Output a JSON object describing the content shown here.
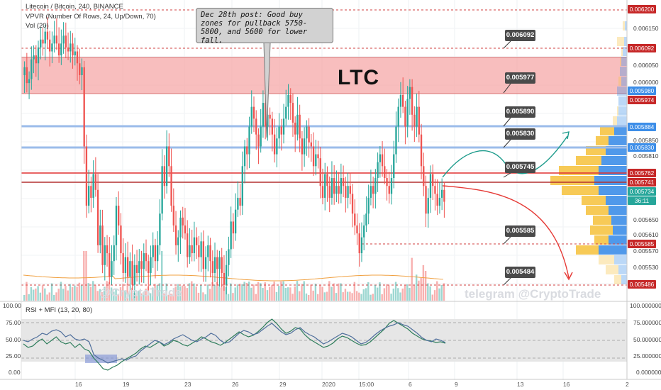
{
  "header": {
    "pair": "Litecoin / Bitcoin, 240, BINANCE",
    "vpvr": "VPVR (Number Of Rows, 24, Up/Down, 70)",
    "vol": "Vol (20)",
    "rsi": "RSI + MFI (13, 20, 80)"
  },
  "annotation": {
    "callout": "Dec 28th post: Good buy zones for pullback 5750-5800, and 5600 for lower fall.",
    "symbol": "LTC"
  },
  "watermarks": {
    "left": "@CryptoTrade",
    "right": "telegram @CryptoTrade"
  },
  "colors": {
    "up": "#26a69a",
    "down": "#ef5350",
    "zone": "#f5a3a3",
    "blue_level": "#9bbcea",
    "red_level": "#e03030",
    "volume_profile_up": "#f6c445",
    "volume_profile_down": "#3d8ee8",
    "path_up": "#1a9a8a",
    "path_down": "#e53935"
  },
  "chart_data": [
    {
      "type": "candlestick",
      "title": "Litecoin / Bitcoin, 240, BINANCE",
      "x_tick_labels": [
        "16",
        "19",
        "23",
        "26",
        "29",
        "2020",
        "15:00",
        "6",
        "9",
        "13",
        "16",
        "2"
      ],
      "y_tick_labels": [
        "0.006150",
        "0.006050",
        "0.006000",
        "0.005850",
        "0.005810",
        "0.005650",
        "0.005610",
        "0.005570",
        "0.005530"
      ],
      "ylim": [
        0.00546,
        0.00622
      ],
      "closes": [
        0.00605,
        0.00601,
        0.00602,
        0.00607,
        0.00608,
        0.00606,
        0.0061,
        0.00612,
        0.00611,
        0.00614,
        0.00612,
        0.00609,
        0.00611,
        0.00613,
        0.00611,
        0.00608,
        0.00611,
        0.00613,
        0.0061,
        0.00609,
        0.00611,
        0.00608,
        0.00609,
        0.00606,
        0.00603,
        0.00605,
        0.00585,
        0.0057,
        0.00575,
        0.00572,
        0.00578,
        0.00574,
        0.0056,
        0.00565,
        0.00555,
        0.0056,
        0.00558,
        0.00552,
        0.00556,
        0.0056,
        0.0057,
        0.00565,
        0.00558,
        0.00553,
        0.00557,
        0.00552,
        0.00556,
        0.0055,
        0.00555,
        0.00553,
        0.00556,
        0.00554,
        0.00558,
        0.00556,
        0.00553,
        0.00557,
        0.0056,
        0.00556,
        0.0056,
        0.00568,
        0.0058,
        0.00575,
        0.00585,
        0.0058,
        0.0057,
        0.00565,
        0.0056,
        0.00562,
        0.00567,
        0.00565,
        0.00563,
        0.00557,
        0.0056,
        0.00558,
        0.00562,
        0.0056,
        0.00557,
        0.00561,
        0.00554,
        0.00557,
        0.0056,
        0.00556,
        0.00553,
        0.00557,
        0.00554,
        0.00557,
        0.00553,
        0.0055,
        0.00555,
        0.00559,
        0.00566,
        0.00563,
        0.00569,
        0.00572,
        0.0057,
        0.0058,
        0.00585,
        0.00583,
        0.0059,
        0.00595,
        0.00592,
        0.00588,
        0.00585,
        0.0059,
        0.00596,
        0.0059,
        0.00593,
        0.00592,
        0.00588,
        0.00583,
        0.00587,
        0.0059,
        0.00588,
        0.00592,
        0.00595,
        0.00598,
        0.00596,
        0.00591,
        0.00588,
        0.00593,
        0.00587,
        0.00583,
        0.00587,
        0.0059,
        0.00586,
        0.00585,
        0.0058,
        0.00583,
        0.00582,
        0.00575,
        0.00572,
        0.00578,
        0.00575,
        0.00572,
        0.00577,
        0.00573,
        0.00575,
        0.00573,
        0.00577,
        0.00575,
        0.00572,
        0.00575,
        0.00573,
        0.00568,
        0.00565,
        0.00563,
        0.00558,
        0.00562,
        0.00565,
        0.00568,
        0.00572,
        0.00575,
        0.00573,
        0.00577,
        0.00581,
        0.00583,
        0.0058,
        0.00577,
        0.00575,
        0.00573,
        0.00577,
        0.00583,
        0.0059,
        0.00595,
        0.00598,
        0.00595,
        0.0059,
        0.00597,
        0.006,
        0.00593,
        0.0059,
        0.00595,
        0.00588,
        0.0058,
        0.00575,
        0.00568,
        0.00572,
        0.00578,
        0.00575,
        0.00573,
        0.0057,
        0.00572,
        0.00574,
        0.00571
      ]
    },
    {
      "type": "bar",
      "title": "Vol (20)"
    },
    {
      "type": "line",
      "title": "RSI + MFI (13, 20, 80)",
      "y_tick_labels": [
        "100.00",
        "75.00",
        "50.00",
        "25.00",
        "0.00"
      ],
      "right_tick_labels": [
        "100.000000",
        "75.000000",
        "50.000000",
        "25.000000",
        "0.000000"
      ],
      "ylim": [
        0,
        100
      ],
      "series": [
        {
          "values": [
            50,
            48,
            52,
            55,
            60,
            58,
            63,
            65,
            62,
            55,
            58,
            52,
            50,
            52,
            48,
            30,
            25,
            22,
            18,
            20,
            22,
            24,
            22,
            26,
            28,
            35,
            40,
            45,
            50,
            48,
            44,
            47,
            52,
            55,
            58,
            54,
            50,
            48,
            52,
            55,
            60,
            57,
            50,
            46,
            48,
            54,
            60,
            64,
            62,
            58,
            60,
            65,
            70,
            74,
            68,
            62,
            58,
            60,
            65,
            68,
            62,
            58,
            55,
            50,
            45,
            48,
            52,
            56,
            60,
            58,
            55,
            50,
            45,
            47,
            52,
            58,
            63,
            67,
            70,
            72,
            75,
            72,
            70,
            65,
            60,
            54,
            50,
            48,
            52,
            50,
            47
          ]
        },
        {
          "values": [
            45,
            40,
            42,
            48,
            52,
            45,
            50,
            55,
            48,
            45,
            47,
            40,
            45,
            38,
            35,
            25,
            18,
            10,
            8,
            12,
            15,
            20,
            24,
            28,
            32,
            38,
            42,
            40,
            44,
            48,
            42,
            45,
            50,
            48,
            44,
            42,
            46,
            50,
            55,
            52,
            48,
            46,
            43,
            47,
            52,
            57,
            62,
            58,
            55,
            57,
            62,
            68,
            75,
            80,
            74,
            66,
            60,
            63,
            68,
            66,
            58,
            52,
            48,
            44,
            40,
            42,
            46,
            52,
            56,
            54,
            50,
            46,
            43,
            44,
            48,
            54,
            60,
            66,
            74,
            78,
            74,
            70,
            66,
            60,
            56,
            52,
            50,
            49,
            47,
            48,
            46
          ]
        }
      ]
    }
  ],
  "price_tags": [
    "0.006092",
    "0.005977",
    "0.005890",
    "0.005830",
    "0.005745",
    "0.005585",
    "0.005484"
  ],
  "price_boxes": [
    {
      "label": "0.006200",
      "color": "#c62828"
    },
    {
      "label": "0.006092",
      "color": "#c62828"
    },
    {
      "label": "0.005980",
      "color": "#3d8ee8"
    },
    {
      "label": "0.005974",
      "color": "#c62828"
    },
    {
      "label": "0.005884",
      "color": "#3d8ee8"
    },
    {
      "label": "0.005830",
      "color": "#3d8ee8"
    },
    {
      "label": "0.005762",
      "color": "#c62828"
    },
    {
      "label": "0.005741",
      "color": "#c62828"
    },
    {
      "label": "0.005734",
      "color": "#26a69a"
    },
    {
      "label": "36:11",
      "color": "#26a69a"
    },
    {
      "label": "0.005585",
      "color": "#c62828"
    },
    {
      "label": "0.005486",
      "color": "#c62828"
    }
  ]
}
